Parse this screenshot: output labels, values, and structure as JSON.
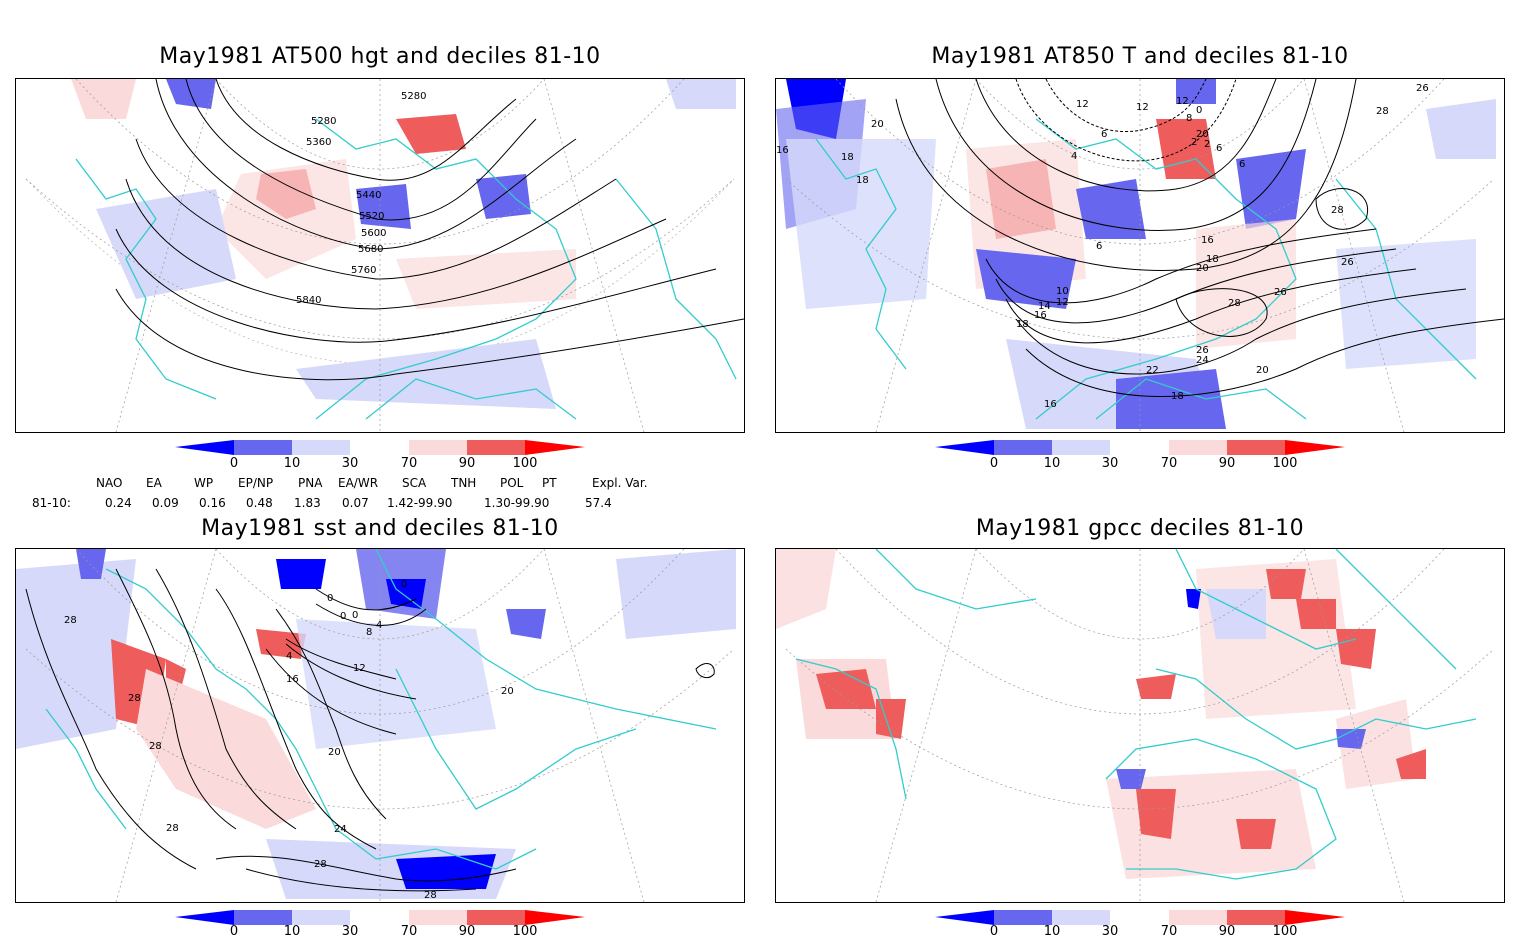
{
  "panels": [
    {
      "title": "May1981 AT500 hgt and deciles 81-10",
      "contour_labels": [
        "5280",
        "5280",
        "5360",
        "5440",
        "5520",
        "5600",
        "5680",
        "5760",
        "5840"
      ]
    },
    {
      "title": "May1981 AT850 T and deciles 81-10",
      "contour_labels": [
        "12",
        "12",
        "12",
        "8",
        "0",
        "6",
        "4",
        "6",
        "2",
        "20",
        "2",
        "6",
        "16",
        "18",
        "20",
        "18",
        "6",
        "28",
        "28",
        "26",
        "26",
        "16",
        "18",
        "20",
        "10",
        "12",
        "14",
        "16",
        "18",
        "28",
        "26",
        "26",
        "24",
        "22",
        "20",
        "18",
        "16"
      ]
    },
    {
      "title": "May1981 sst and deciles 81-10",
      "contour_labels": [
        "0",
        "0",
        "0",
        "0",
        "4",
        "8",
        "4",
        "12",
        "16",
        "20",
        "28",
        "28",
        "28",
        "20",
        "24",
        "28",
        "28",
        "28"
      ]
    },
    {
      "title": "May1981 gpcc deciles 81-10",
      "contour_labels": []
    }
  ],
  "colorbar": {
    "labels": [
      "0",
      "10",
      "30",
      "70",
      "90",
      "100"
    ],
    "colors": {
      "dark_blue": "#0000ff",
      "mid_blue": "#6666ee",
      "light_blue": "#d6d9fa",
      "white": "#ffffff",
      "light_red": "#fadada",
      "mid_red": "#ee5c5c",
      "dark_red": "#ff0000"
    }
  },
  "indices": {
    "header": [
      "NAO",
      "EA",
      "WP",
      "EP/NP",
      "PNA",
      "EA/WR",
      "SCA",
      "TNH",
      "POL",
      "PT",
      "Expl. Var."
    ],
    "row_label": "81-10:",
    "values": [
      "0.24",
      "0.09",
      "0.16",
      "0.48",
      "1.83",
      "0.07",
      "1.42-99.90",
      "1.30-99.90",
      "57.4"
    ]
  },
  "map_colors": {
    "coast": "#33cccc",
    "grid": "#999999",
    "contour": "#000000"
  }
}
